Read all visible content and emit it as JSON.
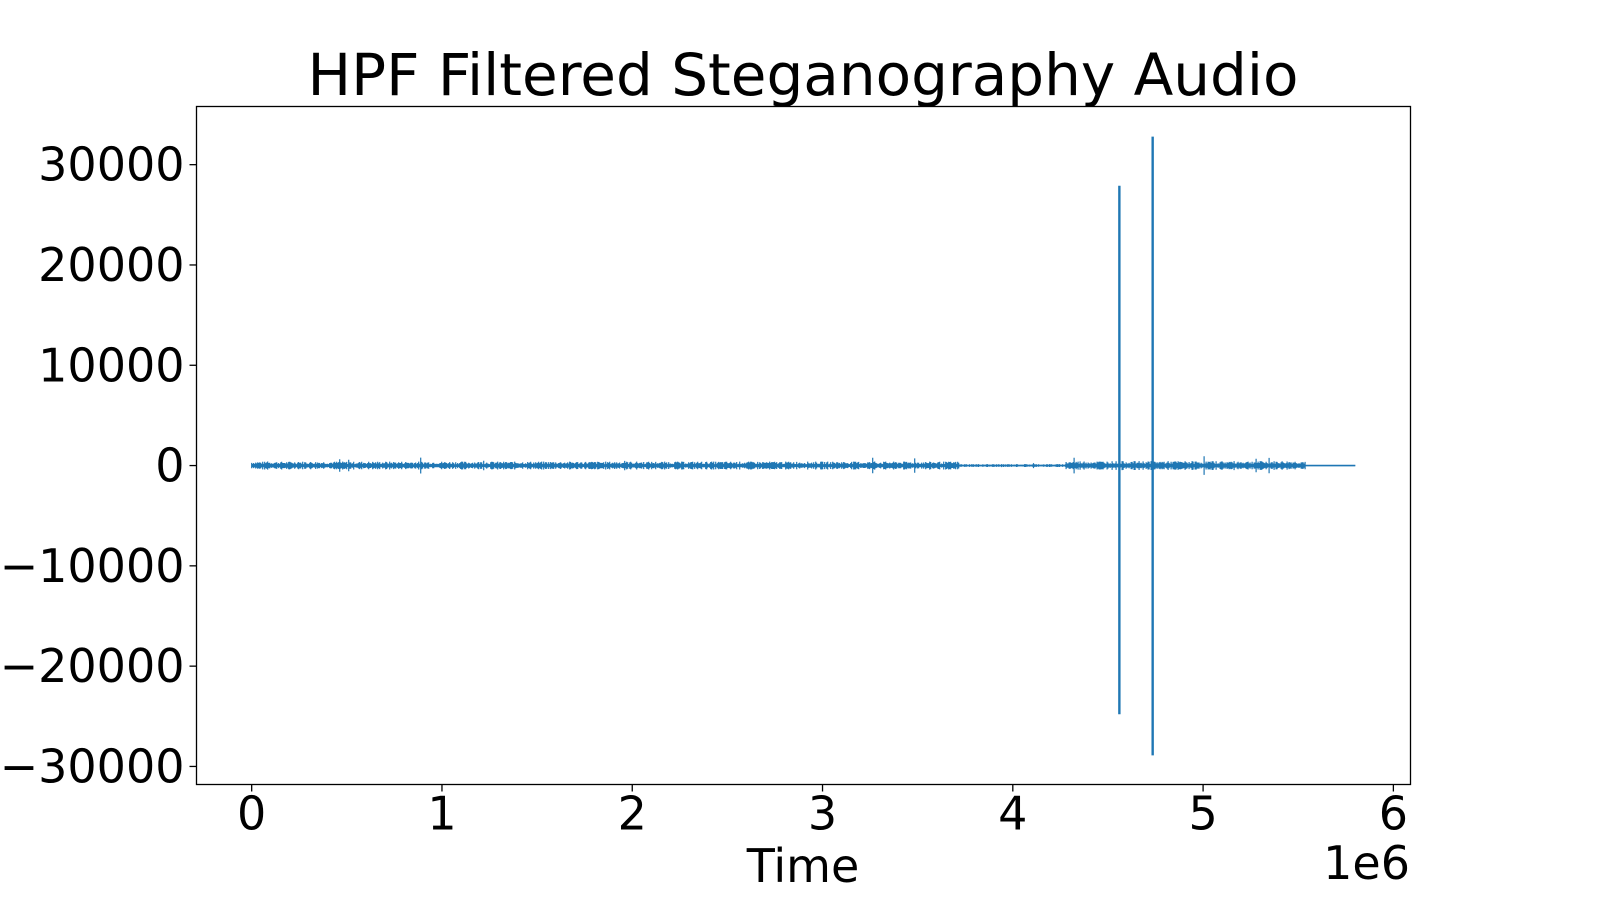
{
  "chart_data": {
    "type": "line",
    "title": "HPF Filtered Steganography Audio",
    "xlabel": "Time",
    "ylabel": "",
    "x_offset_label": "1e6",
    "xlim": [
      -290000,
      6090000
    ],
    "ylim": [
      -31800,
      35800
    ],
    "xticks": [
      0,
      1000000,
      2000000,
      3000000,
      4000000,
      5000000,
      6000000
    ],
    "xtick_labels": [
      "0",
      "1",
      "2",
      "3",
      "4",
      "5",
      "6"
    ],
    "yticks": [
      30000,
      20000,
      10000,
      0,
      -10000,
      -20000,
      -30000
    ],
    "ytick_labels": [
      "30000",
      "20000",
      "10000",
      "0",
      "−10000",
      "−20000",
      "−30000"
    ],
    "grid": false,
    "series": [
      {
        "color": "#1f77b4",
        "x_range": [
          0,
          5800000
        ],
        "baseline": 0,
        "spikes": [
          {
            "x": 4560000,
            "max": 27900,
            "min": -24800
          },
          {
            "x": 4735000,
            "max": 32800,
            "min": -28900
          }
        ],
        "noise_bands": [
          {
            "x_start": 0,
            "x_end": 3720000,
            "amplitude": 400
          },
          {
            "x_start": 3720000,
            "x_end": 4280000,
            "amplitude": 150
          },
          {
            "x_start": 4280000,
            "x_end": 5540000,
            "amplitude": 450
          },
          {
            "x_start": 5540000,
            "x_end": 5800000,
            "amplitude": 20
          }
        ]
      }
    ]
  }
}
